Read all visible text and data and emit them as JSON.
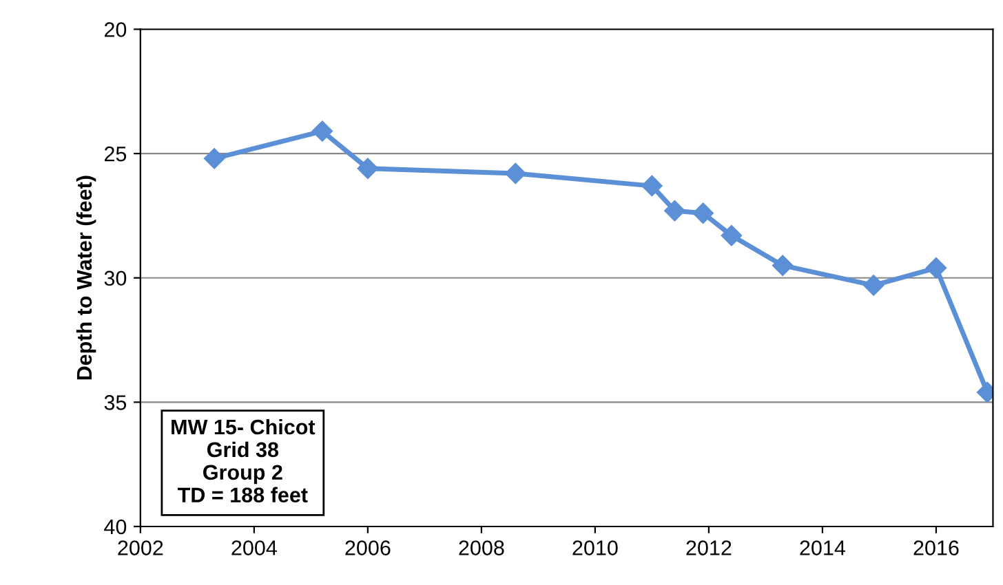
{
  "chart_data": {
    "type": "line",
    "ylabel": "Depth to Water (feet)",
    "x": [
      2003.3,
      2005.2,
      2006.0,
      2008.6,
      2011.0,
      2011.4,
      2011.9,
      2012.4,
      2013.3,
      2014.9,
      2016.0,
      2016.9
    ],
    "series": [
      {
        "color": "#5b8fd6",
        "values": [
          25.2,
          24.1,
          25.6,
          25.8,
          26.3,
          27.3,
          27.4,
          28.3,
          29.5,
          30.3,
          29.6,
          34.6
        ]
      }
    ],
    "xlim": [
      2002,
      2017
    ],
    "xticks": [
      2002,
      2004,
      2006,
      2008,
      2010,
      2012,
      2014,
      2016
    ],
    "ylim": [
      40,
      20
    ],
    "yticks": [
      20,
      25,
      30,
      35,
      40
    ],
    "grid": "y",
    "marker": "diamond",
    "line_style": "solid",
    "annotations": [
      "MW 15- Chicot\nGrid 38\nGroup 2\nTD = 188 feet"
    ]
  }
}
